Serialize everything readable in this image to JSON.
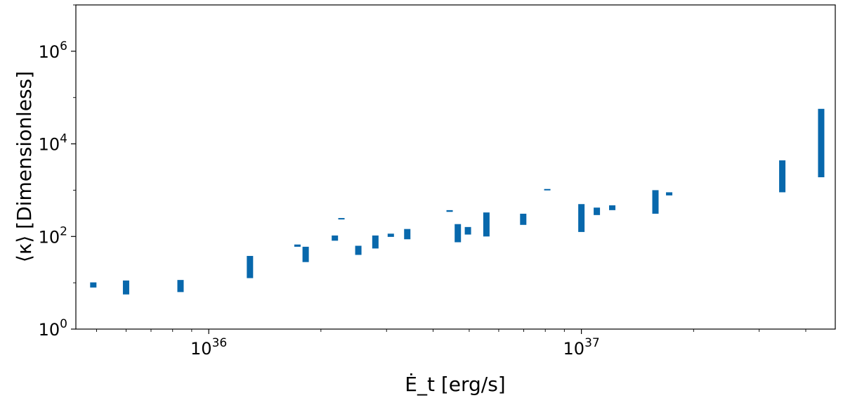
{
  "chart_data": {
    "type": "range-bar",
    "xlabel": "Ė_t [erg/s]",
    "ylabel": "⟨κ⟩ [Dimensionless]",
    "xscale": "log",
    "yscale": "log",
    "xlim": [
      4.4e+35,
      4.8e+37
    ],
    "ylim": [
      1,
      10000000
    ],
    "grid": false,
    "bar_color": "#0868ac",
    "x_ticks": [
      {
        "base": "10",
        "exp": "36",
        "value": 1e+36
      },
      {
        "base": "10",
        "exp": "37",
        "value": 1e+37
      }
    ],
    "y_ticks": [
      {
        "base": "10",
        "exp": "0",
        "value": 1
      },
      {
        "base": "10",
        "exp": "2",
        "value": 100
      },
      {
        "base": "10",
        "exp": "4",
        "value": 10000
      },
      {
        "base": "10",
        "exp": "6",
        "value": 1000000
      }
    ],
    "ranges": [
      {
        "x": 4.9e+35,
        "low": 7.9,
        "high": 10.2
      },
      {
        "x": 6e+35,
        "low": 5.6,
        "high": 11.2
      },
      {
        "x": 8.4e+35,
        "low": 6.3,
        "high": 11.5
      },
      {
        "x": 1.29e+36,
        "low": 12.6,
        "high": 38
      },
      {
        "x": 1.73e+36,
        "low": 60,
        "high": 67
      },
      {
        "x": 1.82e+36,
        "low": 28,
        "high": 60
      },
      {
        "x": 2.18e+36,
        "low": 81,
        "high": 105
      },
      {
        "x": 2.27e+36,
        "low": 240,
        "high": 250
      },
      {
        "x": 2.52e+36,
        "low": 40,
        "high": 63
      },
      {
        "x": 2.8e+36,
        "low": 55,
        "high": 105
      },
      {
        "x": 3.08e+36,
        "low": 98,
        "high": 115
      },
      {
        "x": 3.41e+36,
        "low": 87,
        "high": 145
      },
      {
        "x": 4.43e+36,
        "low": 340,
        "high": 370
      },
      {
        "x": 4.66e+36,
        "low": 75,
        "high": 185
      },
      {
        "x": 4.96e+36,
        "low": 110,
        "high": 160
      },
      {
        "x": 5.56e+36,
        "low": 100,
        "high": 330
      },
      {
        "x": 6.98e+36,
        "low": 178,
        "high": 310
      },
      {
        "x": 8.1e+36,
        "low": 1030,
        "high": 1060
      },
      {
        "x": 1e+37,
        "low": 125,
        "high": 500
      },
      {
        "x": 1.1e+37,
        "low": 290,
        "high": 420
      },
      {
        "x": 1.21e+37,
        "low": 370,
        "high": 470
      },
      {
        "x": 1.58e+37,
        "low": 310,
        "high": 1000
      },
      {
        "x": 1.72e+37,
        "low": 770,
        "high": 900
      },
      {
        "x": 3.46e+37,
        "low": 900,
        "high": 4400
      },
      {
        "x": 4.4e+37,
        "low": 1900,
        "high": 57000
      }
    ]
  }
}
